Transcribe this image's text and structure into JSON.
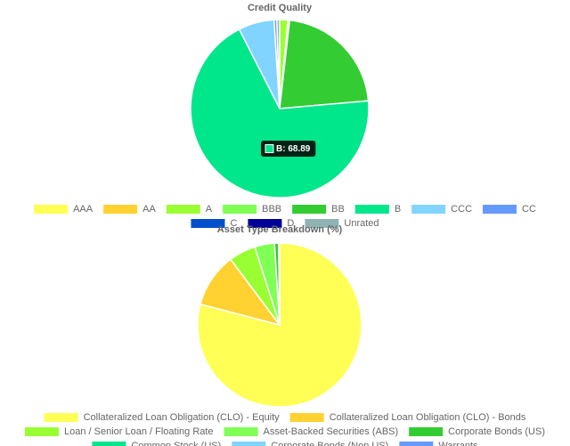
{
  "chart_data": [
    {
      "type": "pie",
      "title": "Credit Quality",
      "categories": [
        "AAA",
        "AA",
        "A",
        "BBB",
        "BB",
        "B",
        "CCC",
        "CC",
        "C",
        "D",
        "Unrated"
      ],
      "values": [
        0,
        0,
        1.5,
        0.3,
        21.8,
        68.89,
        6.5,
        0.5,
        0,
        0,
        0.5
      ],
      "colors": [
        "#ffff55",
        "#ffd232",
        "#99ff33",
        "#80ff55",
        "#33cc33",
        "#00e68a",
        "#80d4ff",
        "#6699ff",
        "#0050cc",
        "#000099",
        "#8fb3b3"
      ],
      "tooltip": "B: 68.89",
      "legend": "bottom"
    },
    {
      "type": "pie",
      "title": "Asset Type Breakdown (%)",
      "categories": [
        "Collateralized Loan Obligation (CLO) - Equity",
        "Collateralized Loan Obligation (CLO) - Bonds",
        "Loan / Senior Loan / Floating Rate",
        "Asset-Backed Securities (ABS)",
        "Corporate Bonds (US)",
        "Common Stock (US)",
        "Corporate Bonds (Non US)",
        "Warrants"
      ],
      "values": [
        79,
        10.7,
        5.3,
        3.9,
        0.8,
        0.2,
        0,
        0
      ],
      "colors": [
        "#ffff55",
        "#ffd232",
        "#99ff33",
        "#80ff55",
        "#33cc33",
        "#00e68a",
        "#80d4ff",
        "#6699ff"
      ],
      "legend": "bottom"
    }
  ]
}
